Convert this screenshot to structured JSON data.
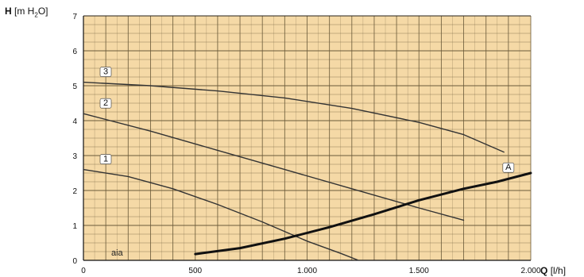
{
  "chart_data": {
    "type": "line",
    "ylabel": {
      "symbol": "H",
      "unit": "[m H",
      "sub": "2",
      "unit_end": "O]"
    },
    "xlabel": {
      "symbol": "Q",
      "unit": "[l/h]"
    },
    "side_text": "aia",
    "xlim": [
      0,
      2000
    ],
    "ylim": [
      0,
      7
    ],
    "x_ticks": [
      0,
      500,
      1000,
      1500,
      2000
    ],
    "x_tick_labels": [
      "0",
      "500",
      "1.000",
      "1.500",
      "2.000"
    ],
    "y_ticks": [
      0,
      1,
      2,
      3,
      4,
      5,
      6,
      7
    ],
    "y_tick_labels": [
      "0",
      "1",
      "2",
      "3",
      "4",
      "5",
      "6",
      "7"
    ],
    "grid": true,
    "background_color": "#f5d9a6",
    "grid_color": "#6b5a3a",
    "series": [
      {
        "name": "1",
        "color": "#333333",
        "points": [
          [
            0,
            2.6
          ],
          [
            200,
            2.4
          ],
          [
            400,
            2.05
          ],
          [
            600,
            1.6
          ],
          [
            800,
            1.1
          ],
          [
            1000,
            0.55
          ],
          [
            1150,
            0.2
          ],
          [
            1230,
            0
          ]
        ]
      },
      {
        "name": "2",
        "color": "#333333",
        "points": [
          [
            0,
            4.2
          ],
          [
            300,
            3.7
          ],
          [
            600,
            3.15
          ],
          [
            900,
            2.6
          ],
          [
            1200,
            2.05
          ],
          [
            1500,
            1.5
          ],
          [
            1700,
            1.15
          ]
        ]
      },
      {
        "name": "3",
        "color": "#333333",
        "points": [
          [
            0,
            5.1
          ],
          [
            300,
            5.0
          ],
          [
            600,
            4.85
          ],
          [
            900,
            4.65
          ],
          [
            1200,
            4.35
          ],
          [
            1500,
            3.95
          ],
          [
            1700,
            3.6
          ],
          [
            1880,
            3.1
          ]
        ]
      },
      {
        "name": "A",
        "color": "#111111",
        "points": [
          [
            500,
            0.18
          ],
          [
            700,
            0.35
          ],
          [
            900,
            0.62
          ],
          [
            1100,
            0.95
          ],
          [
            1300,
            1.32
          ],
          [
            1500,
            1.72
          ],
          [
            1700,
            2.05
          ],
          [
            1850,
            2.25
          ],
          [
            2000,
            2.5
          ]
        ]
      }
    ]
  }
}
